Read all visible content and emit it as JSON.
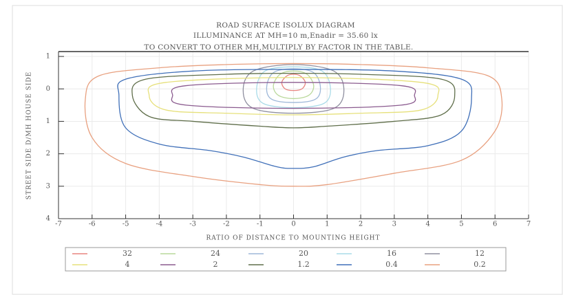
{
  "chart_data": {
    "type": "contour",
    "title": "ROAD SURFACE ISOLUX DIAGRAM",
    "subtitle": "ILLUMINANCE AT MH=10 m,Enadir = 35.60 lx",
    "note": "TO CONVERT TO OTHER MH,MULTIPLY BY FACTOR IN THE TABLE.",
    "x_label": "RATIO OF DISTANCE TO MOUNTING HEIGHT",
    "y_label": "STREET SIDE D/MH HOUSE SIDE",
    "xlim": [
      -7,
      7
    ],
    "ylim": [
      -1.15,
      4
    ],
    "xticks": [
      -7,
      -6,
      -5,
      -4,
      -3,
      -2,
      -1,
      0,
      1,
      2,
      3,
      4,
      5,
      6,
      7
    ],
    "yticks": [
      {
        "value": -1,
        "label": "1"
      },
      0,
      1,
      2,
      3,
      4
    ],
    "grid": true,
    "series": [
      {
        "name": "32",
        "color": "#e8837f",
        "x": [
          -0.35,
          -0.25,
          0,
          0.25,
          0.35,
          0.2,
          0,
          -0.2
        ],
        "y": [
          -0.2,
          0,
          0.05,
          0,
          -0.2,
          -0.4,
          -0.45,
          -0.4
        ]
      },
      {
        "name": "24",
        "color": "#b9d89a",
        "x": [
          -0.6,
          -0.45,
          0,
          0.45,
          0.6,
          0.4,
          0,
          -0.4
        ],
        "y": [
          -0.1,
          0.2,
          0.3,
          0.2,
          -0.1,
          -0.45,
          -0.55,
          -0.45
        ]
      },
      {
        "name": "20",
        "color": "#9db7d8",
        "x": [
          -0.8,
          -0.65,
          0,
          0.65,
          0.8,
          0.6,
          0,
          -0.6
        ],
        "y": [
          -0.05,
          0.32,
          0.42,
          0.32,
          -0.05,
          -0.5,
          -0.62,
          -0.5
        ]
      },
      {
        "name": "16",
        "color": "#a9dbe8",
        "x": [
          -1.1,
          -0.9,
          0,
          0.9,
          1.1,
          0.85,
          0,
          -0.85
        ],
        "y": [
          0,
          0.45,
          0.58,
          0.45,
          0,
          -0.55,
          -0.68,
          -0.55
        ]
      },
      {
        "name": "12",
        "color": "#8f8f9f",
        "x": [
          -1.5,
          -1.2,
          0,
          1.2,
          1.5,
          1.2,
          0,
          -1.2
        ],
        "y": [
          0.05,
          0.6,
          0.75,
          0.6,
          0.05,
          -0.55,
          -0.75,
          -0.55
        ]
      },
      {
        "name": "4",
        "color": "#e6e07a",
        "x": [
          -4.3,
          -3.8,
          -2,
          0,
          2,
          3.8,
          4.3,
          3.8,
          0,
          -3.8
        ],
        "y": [
          0.2,
          0.65,
          0.75,
          0.8,
          0.75,
          0.65,
          0.2,
          -0.2,
          -0.35,
          -0.2
        ]
      },
      {
        "name": "2",
        "color": "#8a5a8e",
        "x": [
          -3.6,
          -3.2,
          0,
          3.2,
          3.6,
          3.2,
          0,
          -3.2
        ],
        "y": [
          0.2,
          0.5,
          0.6,
          0.5,
          0.2,
          -0.1,
          -0.2,
          -0.1
        ]
      },
      {
        "name": "1.2",
        "color": "#5f6e4a",
        "x": [
          -4.8,
          -4.3,
          -3,
          -1,
          0,
          1,
          3,
          4.4,
          4.8,
          4.4,
          2,
          0,
          -2,
          -4.4
        ],
        "y": [
          0.2,
          0.85,
          1.0,
          1.15,
          1.2,
          1.15,
          1.0,
          0.8,
          0.2,
          -0.3,
          -0.45,
          -0.48,
          -0.45,
          -0.3
        ]
      },
      {
        "name": "0.4",
        "color": "#3f6fb8",
        "x": [
          -5.2,
          -5,
          -4,
          -2.5,
          -1.5,
          -0.5,
          0,
          0.6,
          1.5,
          2.5,
          4,
          5,
          5.3,
          5,
          3,
          0,
          -3,
          -5
        ],
        "y": [
          0.2,
          1.2,
          1.7,
          1.9,
          2.1,
          2.4,
          2.45,
          2.4,
          2.1,
          1.9,
          1.75,
          1.3,
          0.3,
          -0.3,
          -0.55,
          -0.6,
          -0.55,
          -0.3
        ]
      },
      {
        "name": "0.2",
        "color": "#e8a07f",
        "x": [
          -6.2,
          -6,
          -5,
          -3,
          -1,
          0,
          1,
          3,
          5,
          6,
          6.2,
          5.8,
          4,
          2,
          0,
          -2,
          -4,
          -5.8
        ],
        "y": [
          0.3,
          1.5,
          2.3,
          2.7,
          2.95,
          3.0,
          2.95,
          2.6,
          2.2,
          1.3,
          0.3,
          -0.4,
          -0.65,
          -0.75,
          -0.78,
          -0.75,
          -0.65,
          -0.4
        ]
      }
    ]
  }
}
